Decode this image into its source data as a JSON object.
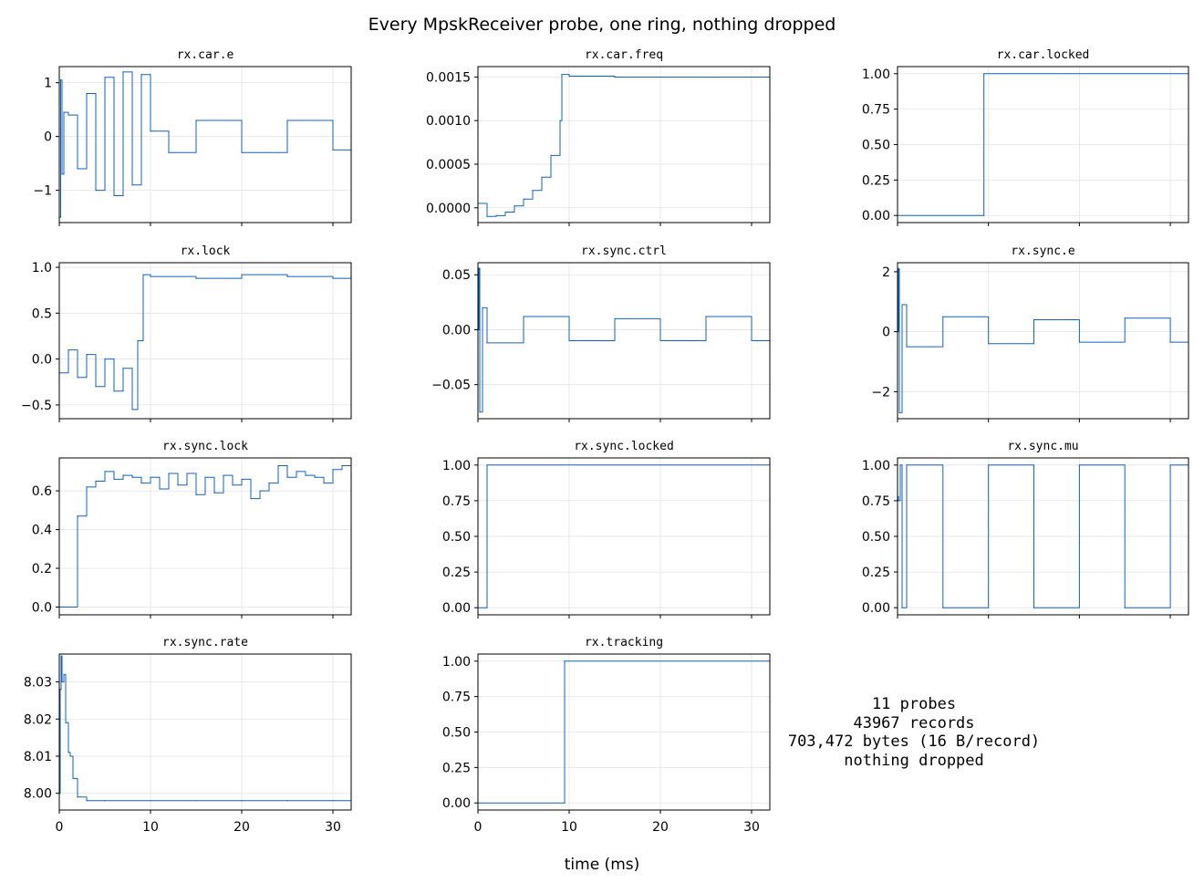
{
  "figure": {
    "title": "Every MpskReceiver probe, one ring, nothing dropped",
    "xlabel": "time (ms)",
    "summary_lines": [
      "11 probes",
      "43967 records",
      "703,472 bytes  (16 B/record)",
      "nothing dropped"
    ],
    "line_color": "#1560bd"
  },
  "chart_data": [
    {
      "type": "line",
      "title": "rx.car.e",
      "xlim": [
        0,
        32
      ],
      "ylim": [
        -1.6,
        1.3
      ],
      "xticks": [
        0,
        10,
        20,
        30
      ],
      "yticks": [
        -1,
        0,
        1
      ],
      "ytick_labels": [
        "−1",
        "0",
        "1"
      ],
      "grid": true,
      "x": [
        0,
        0.15,
        0.3,
        0.5,
        1,
        2,
        3,
        4,
        5,
        6,
        7,
        8,
        9,
        10,
        12,
        15,
        20,
        25,
        30,
        32
      ],
      "y": [
        -1.5,
        1.05,
        -0.7,
        0.45,
        0.4,
        -0.6,
        0.8,
        -1.0,
        1.1,
        -1.1,
        1.2,
        -0.9,
        1.15,
        0.1,
        -0.3,
        0.3,
        -0.3,
        0.3,
        -0.25,
        0.2
      ]
    },
    {
      "type": "line",
      "title": "rx.car.freq",
      "xlim": [
        0,
        32
      ],
      "ylim": [
        -0.00017,
        0.00162
      ],
      "xticks": [
        0,
        10,
        20,
        30
      ],
      "yticks": [
        0,
        0.0005,
        0.001,
        0.0015
      ],
      "ytick_labels": [
        "0.0000",
        "0.0005",
        "0.0010",
        "0.0015"
      ],
      "grid": true,
      "x": [
        0,
        1,
        2,
        3,
        4,
        5,
        6,
        7,
        8,
        9,
        9.2,
        10,
        15,
        20,
        25,
        30,
        32
      ],
      "y": [
        5e-05,
        -0.0001,
        -9e-05,
        -5e-05,
        2e-05,
        0.0001,
        0.0002,
        0.00035,
        0.0006,
        0.001,
        0.00153,
        0.00151,
        0.0015,
        0.0015,
        0.0015,
        0.0015,
        0.0015
      ]
    },
    {
      "type": "line",
      "title": "rx.car.locked",
      "xlim": [
        0,
        32
      ],
      "ylim": [
        -0.05,
        1.05
      ],
      "xticks": [
        0,
        10,
        20,
        30
      ],
      "yticks": [
        0,
        0.25,
        0.5,
        0.75,
        1
      ],
      "ytick_labels": [
        "0.00",
        "0.25",
        "0.50",
        "0.75",
        "1.00"
      ],
      "grid": true,
      "x": [
        0,
        9.5,
        9.5,
        32
      ],
      "y": [
        0,
        0,
        1,
        1
      ]
    },
    {
      "type": "line",
      "title": "rx.lock",
      "xlim": [
        0,
        32
      ],
      "ylim": [
        -0.65,
        1.05
      ],
      "xticks": [
        0,
        10,
        20,
        30
      ],
      "yticks": [
        -0.5,
        0,
        0.5,
        1
      ],
      "ytick_labels": [
        "−0.5",
        "0.0",
        "0.5",
        "1.0"
      ],
      "grid": true,
      "x": [
        0,
        1,
        2,
        3,
        4,
        5,
        6,
        7,
        8,
        8.6,
        9.2,
        10,
        15,
        20,
        25,
        30,
        32
      ],
      "y": [
        -0.15,
        0.1,
        -0.2,
        0.05,
        -0.3,
        0.0,
        -0.35,
        -0.1,
        -0.55,
        0.2,
        0.92,
        0.9,
        0.88,
        0.92,
        0.9,
        0.88,
        0.9
      ]
    },
    {
      "type": "line",
      "title": "rx.sync.ctrl",
      "xlim": [
        0,
        32
      ],
      "ylim": [
        -0.081,
        0.061
      ],
      "xticks": [
        0,
        10,
        20,
        30
      ],
      "yticks": [
        -0.05,
        0,
        0.05
      ],
      "ytick_labels": [
        "−0.05",
        "0.00",
        "0.05"
      ],
      "grid": true,
      "x": [
        0,
        0.1,
        0.2,
        0.5,
        1,
        5,
        10,
        15,
        20,
        25,
        30,
        32
      ],
      "y": [
        0.0,
        0.056,
        -0.075,
        0.02,
        -0.012,
        0.012,
        -0.01,
        0.01,
        -0.01,
        0.012,
        -0.01,
        0.0
      ]
    },
    {
      "type": "line",
      "title": "rx.sync.e",
      "xlim": [
        0,
        32
      ],
      "ylim": [
        -2.9,
        2.3
      ],
      "xticks": [
        0,
        10,
        20,
        30
      ],
      "yticks": [
        -2,
        0,
        2
      ],
      "ytick_labels": [
        "−2",
        "0",
        "2"
      ],
      "grid": true,
      "x": [
        0,
        0.1,
        0.2,
        0.5,
        1,
        5,
        10,
        15,
        20,
        25,
        30,
        32
      ],
      "y": [
        0.0,
        2.1,
        -2.7,
        0.9,
        -0.5,
        0.5,
        -0.4,
        0.4,
        -0.35,
        0.45,
        -0.35,
        0.1
      ]
    },
    {
      "type": "line",
      "title": "rx.sync.lock",
      "xlim": [
        0,
        32
      ],
      "ylim": [
        -0.04,
        0.77
      ],
      "xticks": [
        0,
        10,
        20,
        30
      ],
      "yticks": [
        0,
        0.2,
        0.4,
        0.6
      ],
      "ytick_labels": [
        "0.0",
        "0.2",
        "0.4",
        "0.6"
      ],
      "grid": true,
      "x": [
        0,
        1,
        2,
        3,
        4,
        5,
        6,
        7,
        8,
        9,
        10,
        11,
        12,
        13,
        14,
        15,
        16,
        17,
        18,
        19,
        20,
        21,
        22,
        23,
        24,
        25,
        26,
        27,
        28,
        29,
        30,
        31,
        32
      ],
      "y": [
        0.0,
        0.0,
        0.47,
        0.62,
        0.65,
        0.7,
        0.66,
        0.68,
        0.67,
        0.64,
        0.67,
        0.61,
        0.69,
        0.63,
        0.69,
        0.58,
        0.67,
        0.59,
        0.68,
        0.63,
        0.66,
        0.56,
        0.6,
        0.64,
        0.73,
        0.67,
        0.7,
        0.68,
        0.67,
        0.64,
        0.71,
        0.73,
        0.68
      ]
    },
    {
      "type": "line",
      "title": "rx.sync.locked",
      "xlim": [
        0,
        32
      ],
      "ylim": [
        -0.05,
        1.05
      ],
      "xticks": [
        0,
        10,
        20,
        30
      ],
      "yticks": [
        0,
        0.25,
        0.5,
        0.75,
        1
      ],
      "ytick_labels": [
        "0.00",
        "0.25",
        "0.50",
        "0.75",
        "1.00"
      ],
      "grid": true,
      "x": [
        0,
        1,
        1,
        32
      ],
      "y": [
        0,
        0,
        1,
        1
      ]
    },
    {
      "type": "line",
      "title": "rx.sync.mu",
      "xlim": [
        0,
        32
      ],
      "ylim": [
        -0.05,
        1.05
      ],
      "xticks": [
        0,
        10,
        20,
        30
      ],
      "yticks": [
        0,
        0.25,
        0.5,
        0.75,
        1
      ],
      "ytick_labels": [
        "0.00",
        "0.25",
        "0.50",
        "0.75",
        "1.00"
      ],
      "grid": true,
      "x": [
        0,
        0.1,
        0.3,
        0.5,
        1,
        5,
        10,
        15,
        20,
        25,
        30,
        32
      ],
      "y": [
        0.78,
        0.75,
        1.0,
        0.0,
        1.0,
        0.0,
        1.0,
        0.0,
        1.0,
        0.0,
        1.0,
        0.5
      ]
    },
    {
      "type": "line",
      "title": "rx.sync.rate",
      "xlim": [
        0,
        32
      ],
      "ylim": [
        7.9955,
        8.0375
      ],
      "xticks": [
        0,
        10,
        20,
        30
      ],
      "xtick_labels": [
        "0",
        "10",
        "20",
        "30"
      ],
      "yticks": [
        8.0,
        8.01,
        8.02,
        8.03
      ],
      "ytick_labels": [
        "8.00",
        "8.01",
        "8.02",
        "8.03"
      ],
      "grid": true,
      "x": [
        0,
        0.1,
        0.2,
        0.3,
        0.5,
        0.7,
        1,
        1.2,
        1.5,
        2,
        3,
        5,
        10,
        15,
        20,
        25,
        30,
        32
      ],
      "y": [
        8.0,
        8.028,
        8.037,
        8.03,
        8.032,
        8.019,
        8.011,
        8.01,
        8.004,
        7.999,
        7.998,
        7.998,
        7.998,
        7.998,
        7.998,
        7.998,
        7.998,
        7.998
      ]
    },
    {
      "type": "line",
      "title": "rx.tracking",
      "xlim": [
        0,
        32
      ],
      "ylim": [
        -0.05,
        1.05
      ],
      "xticks": [
        0,
        10,
        20,
        30
      ],
      "xtick_labels": [
        "0",
        "10",
        "20",
        "30"
      ],
      "yticks": [
        0,
        0.25,
        0.5,
        0.75,
        1
      ],
      "ytick_labels": [
        "0.00",
        "0.25",
        "0.50",
        "0.75",
        "1.00"
      ],
      "grid": true,
      "x": [
        0,
        9.5,
        9.5,
        32
      ],
      "y": [
        0,
        0,
        1,
        1
      ]
    }
  ]
}
